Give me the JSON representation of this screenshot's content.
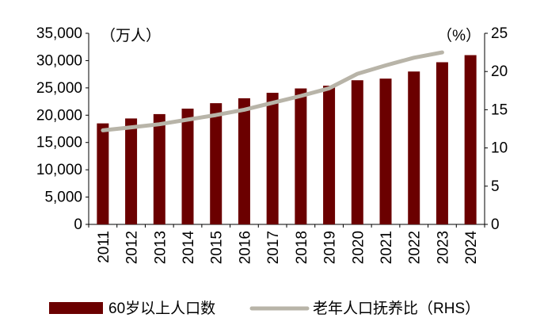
{
  "chart_data": {
    "type": "bar",
    "categories": [
      "2011",
      "2012",
      "2013",
      "2014",
      "2015",
      "2016",
      "2017",
      "2018",
      "2019",
      "2020",
      "2021",
      "2022",
      "2023",
      "2024"
    ],
    "series": [
      {
        "name": "60岁以上人口数",
        "type": "bar",
        "axis": "left",
        "color": "#6b0000",
        "values": [
          18500,
          19400,
          20200,
          21200,
          22200,
          23100,
          24100,
          24900,
          25400,
          26400,
          26700,
          28000,
          29700,
          31000
        ]
      },
      {
        "name": "老年人口抚养比（RHS）",
        "type": "line",
        "axis": "right",
        "color": "#b8b4a8",
        "values": [
          12.3,
          12.7,
          13.1,
          13.7,
          14.3,
          15.0,
          15.9,
          16.8,
          17.8,
          19.7,
          20.8,
          21.8,
          22.5,
          null
        ]
      }
    ],
    "left_axis": {
      "unit": "（万人）",
      "ylim": [
        0,
        35000
      ],
      "ticks": [
        "0",
        "5,000",
        "10,000",
        "15,000",
        "20,000",
        "25,000",
        "30,000",
        "35,000"
      ]
    },
    "right_axis": {
      "unit": "（%）",
      "ylim": [
        0,
        25
      ],
      "ticks": [
        "0",
        "5",
        "10",
        "15",
        "20",
        "25"
      ]
    },
    "grid": false,
    "legend_position": "bottom",
    "legend": [
      {
        "label": "60岁以上人口数",
        "color": "#6b0000",
        "kind": "bar"
      },
      {
        "label": "老年人口抚养比（RHS）",
        "color": "#b8b4a8",
        "kind": "line"
      }
    ]
  }
}
